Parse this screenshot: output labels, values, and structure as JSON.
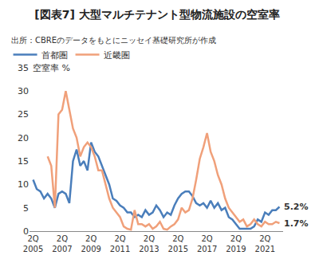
{
  "chart_data": {
    "type": "line",
    "title": "[図表7] 大型マルチテナント型物流施設の空室率",
    "subtitle": "出所：CBREのデータをもとにニッセイ基礎研究所が作成",
    "y_label": "空室率 %",
    "categories": [
      "2Q 2005",
      null,
      null,
      null,
      null,
      null,
      null,
      null,
      "2Q 2007",
      null,
      null,
      null,
      null,
      null,
      null,
      null,
      "2Q 2009",
      null,
      null,
      null,
      null,
      null,
      null,
      null,
      "2Q 2011",
      null,
      null,
      null,
      null,
      null,
      null,
      null,
      "2Q 2013",
      null,
      null,
      null,
      null,
      null,
      null,
      null,
      "2Q 2015",
      null,
      null,
      null,
      null,
      null,
      null,
      null,
      "2Q 2017",
      null,
      null,
      null,
      null,
      null,
      null,
      null,
      "2Q 2019",
      null,
      null,
      null,
      null,
      null,
      null,
      null,
      "2Q 2021",
      null,
      null,
      null,
      null
    ],
    "series": [
      {
        "name": "首都圏",
        "color": "#4a7ebb",
        "values": [
          11,
          9,
          8.5,
          7,
          8,
          7,
          5,
          8,
          8.5,
          8,
          6,
          15,
          17.5,
          14,
          15,
          13,
          19,
          17,
          16,
          14,
          12,
          10,
          7,
          6.5,
          5.5,
          5,
          4,
          4,
          3,
          3.5,
          3,
          4.5,
          3.5,
          4,
          5.5,
          4.5,
          3,
          4,
          3.5,
          5.5,
          7,
          8,
          8.5,
          8.5,
          7.5,
          6,
          5.5,
          6,
          5,
          6.5,
          5,
          6,
          4.5,
          5,
          3,
          2.5,
          1.5,
          0.5,
          0.5,
          0.5,
          0.5,
          1,
          2.5,
          2,
          4,
          3.5,
          4.5,
          4.5,
          5.2
        ],
        "value_labels": [
          null,
          null,
          null,
          null,
          null,
          null,
          null,
          null,
          null,
          null,
          null,
          null,
          null,
          null,
          null,
          null,
          null,
          null,
          null,
          null,
          null,
          null,
          null,
          null,
          null,
          null,
          null,
          null,
          null,
          null,
          null,
          null,
          null,
          null,
          null,
          null,
          null,
          null,
          null,
          null,
          null,
          null,
          null,
          null,
          null,
          null,
          null,
          null,
          null,
          null,
          null,
          null,
          null,
          null,
          null,
          null,
          null,
          null,
          null,
          null,
          null,
          null,
          null,
          null,
          null,
          null,
          null,
          null,
          "5.2%"
        ]
      },
      {
        "name": "近畿圏",
        "color": "#f0a07a",
        "values": [
          null,
          null,
          null,
          null,
          16,
          14,
          5,
          25,
          26,
          30,
          26,
          22,
          20,
          16,
          18,
          19,
          18,
          16,
          13,
          13,
          10,
          7,
          5,
          4,
          3,
          1,
          0.5,
          0.3,
          4.5,
          1.5,
          1.5,
          1,
          1.5,
          0.5,
          1,
          2,
          0.5,
          0.3,
          1,
          1.5,
          2.5,
          5,
          4,
          4.5,
          7,
          11,
          15.5,
          18,
          21,
          17,
          15,
          12,
          10,
          7,
          5,
          4,
          3,
          2,
          2.5,
          1,
          1.5,
          2.5,
          1.5,
          1,
          2,
          1.5,
          1.5,
          2,
          1.7
        ],
        "value_labels": [
          null,
          null,
          null,
          null,
          null,
          null,
          null,
          null,
          null,
          null,
          null,
          null,
          null,
          null,
          null,
          null,
          null,
          null,
          null,
          null,
          null,
          null,
          null,
          null,
          null,
          null,
          null,
          null,
          null,
          null,
          null,
          null,
          null,
          null,
          null,
          null,
          null,
          null,
          null,
          null,
          null,
          null,
          null,
          null,
          null,
          null,
          null,
          null,
          null,
          null,
          null,
          null,
          null,
          null,
          null,
          null,
          null,
          null,
          null,
          null,
          null,
          null,
          null,
          null,
          null,
          null,
          null,
          null,
          "1.7%"
        ]
      }
    ],
    "ylim": [
      0,
      35
    ],
    "yticks": [
      0,
      5,
      10,
      15,
      20,
      25,
      30,
      35
    ],
    "grid": false,
    "legend": "top-left"
  }
}
